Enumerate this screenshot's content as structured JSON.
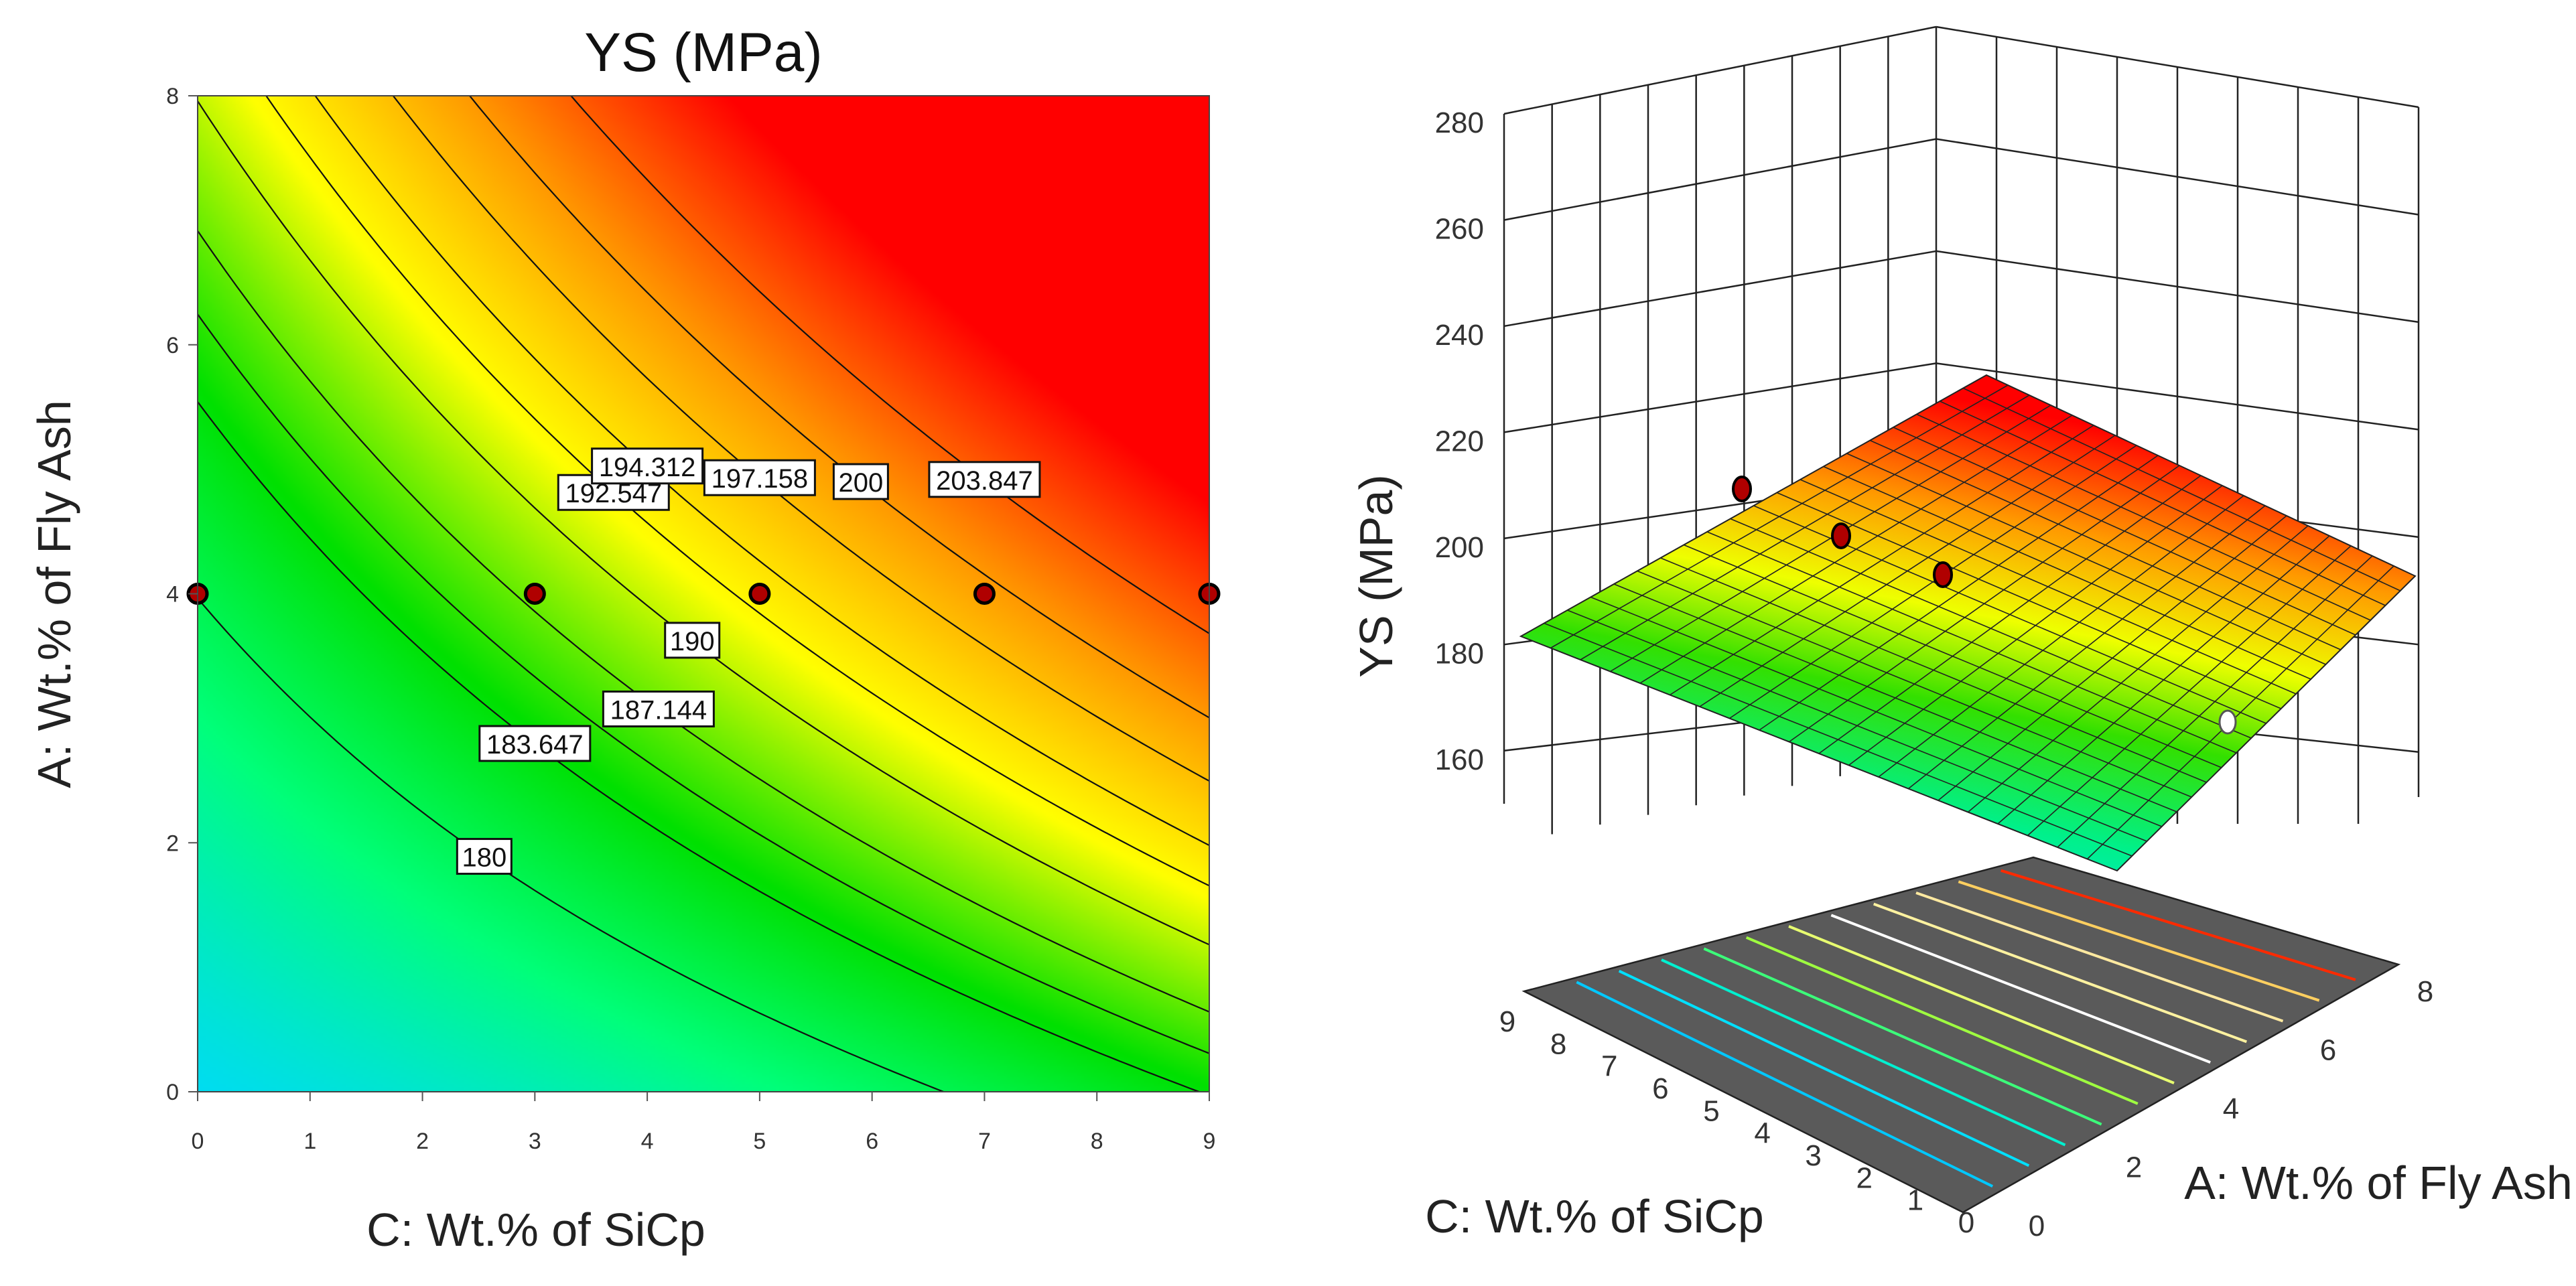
{
  "chart_data": [
    {
      "type": "contour",
      "title": "YS  (MPa)",
      "xlabel": "C: Wt.% of SiCp",
      "ylabel": "A: Wt.% of Fly Ash",
      "xlim": [
        0,
        9
      ],
      "ylim": [
        0,
        8
      ],
      "x_ticks": [
        "0",
        "1",
        "2",
        "3",
        "4",
        "5",
        "6",
        "7",
        "8",
        "9"
      ],
      "y_ticks": [
        "0",
        "2",
        "4",
        "6",
        "8"
      ],
      "contour_levels": [
        {
          "value": 180,
          "label": "180",
          "labeled": true
        },
        {
          "value": 183.647,
          "label": "183.647",
          "labeled": true
        },
        {
          "value": 185.4,
          "label": "",
          "labeled": false
        },
        {
          "value": 187.144,
          "label": "187.144",
          "labeled": true
        },
        {
          "value": 190,
          "label": "190",
          "labeled": true
        },
        {
          "value": 192.547,
          "label": "192.547",
          "labeled": true
        },
        {
          "value": 194.312,
          "label": "194.312",
          "labeled": true
        },
        {
          "value": 197.158,
          "label": "197.158",
          "labeled": true
        },
        {
          "value": 200,
          "label": "200",
          "labeled": true
        },
        {
          "value": 203.847,
          "label": "203.847",
          "labeled": true
        }
      ],
      "design_points": [
        {
          "x": 0,
          "y": 4
        },
        {
          "x": 3,
          "y": 4
        },
        {
          "x": 5,
          "y": 4
        },
        {
          "x": 7,
          "y": 4
        },
        {
          "x": 9,
          "y": 4
        }
      ],
      "colormap": [
        "#00d8ff",
        "#00ff7a",
        "#00e000",
        "#ffff00",
        "#ff9800",
        "#ff0000"
      ]
    },
    {
      "type": "surface3d",
      "zlabel": "YS  (MPa)",
      "xlabel": "C: Wt.% of SiCp",
      "ylabel": "A: Wt.% of Fly Ash",
      "z_ticks": [
        "160",
        "180",
        "200",
        "220",
        "240",
        "260",
        "280"
      ],
      "x_ticks": [
        "0",
        "1",
        "2",
        "3",
        "4",
        "5",
        "6",
        "7",
        "8",
        "9"
      ],
      "y_ticks": [
        "0",
        "2",
        "4",
        "6",
        "8"
      ],
      "zlim": [
        150,
        280
      ],
      "design_points_above": 3,
      "design_points_below": 1
    }
  ]
}
